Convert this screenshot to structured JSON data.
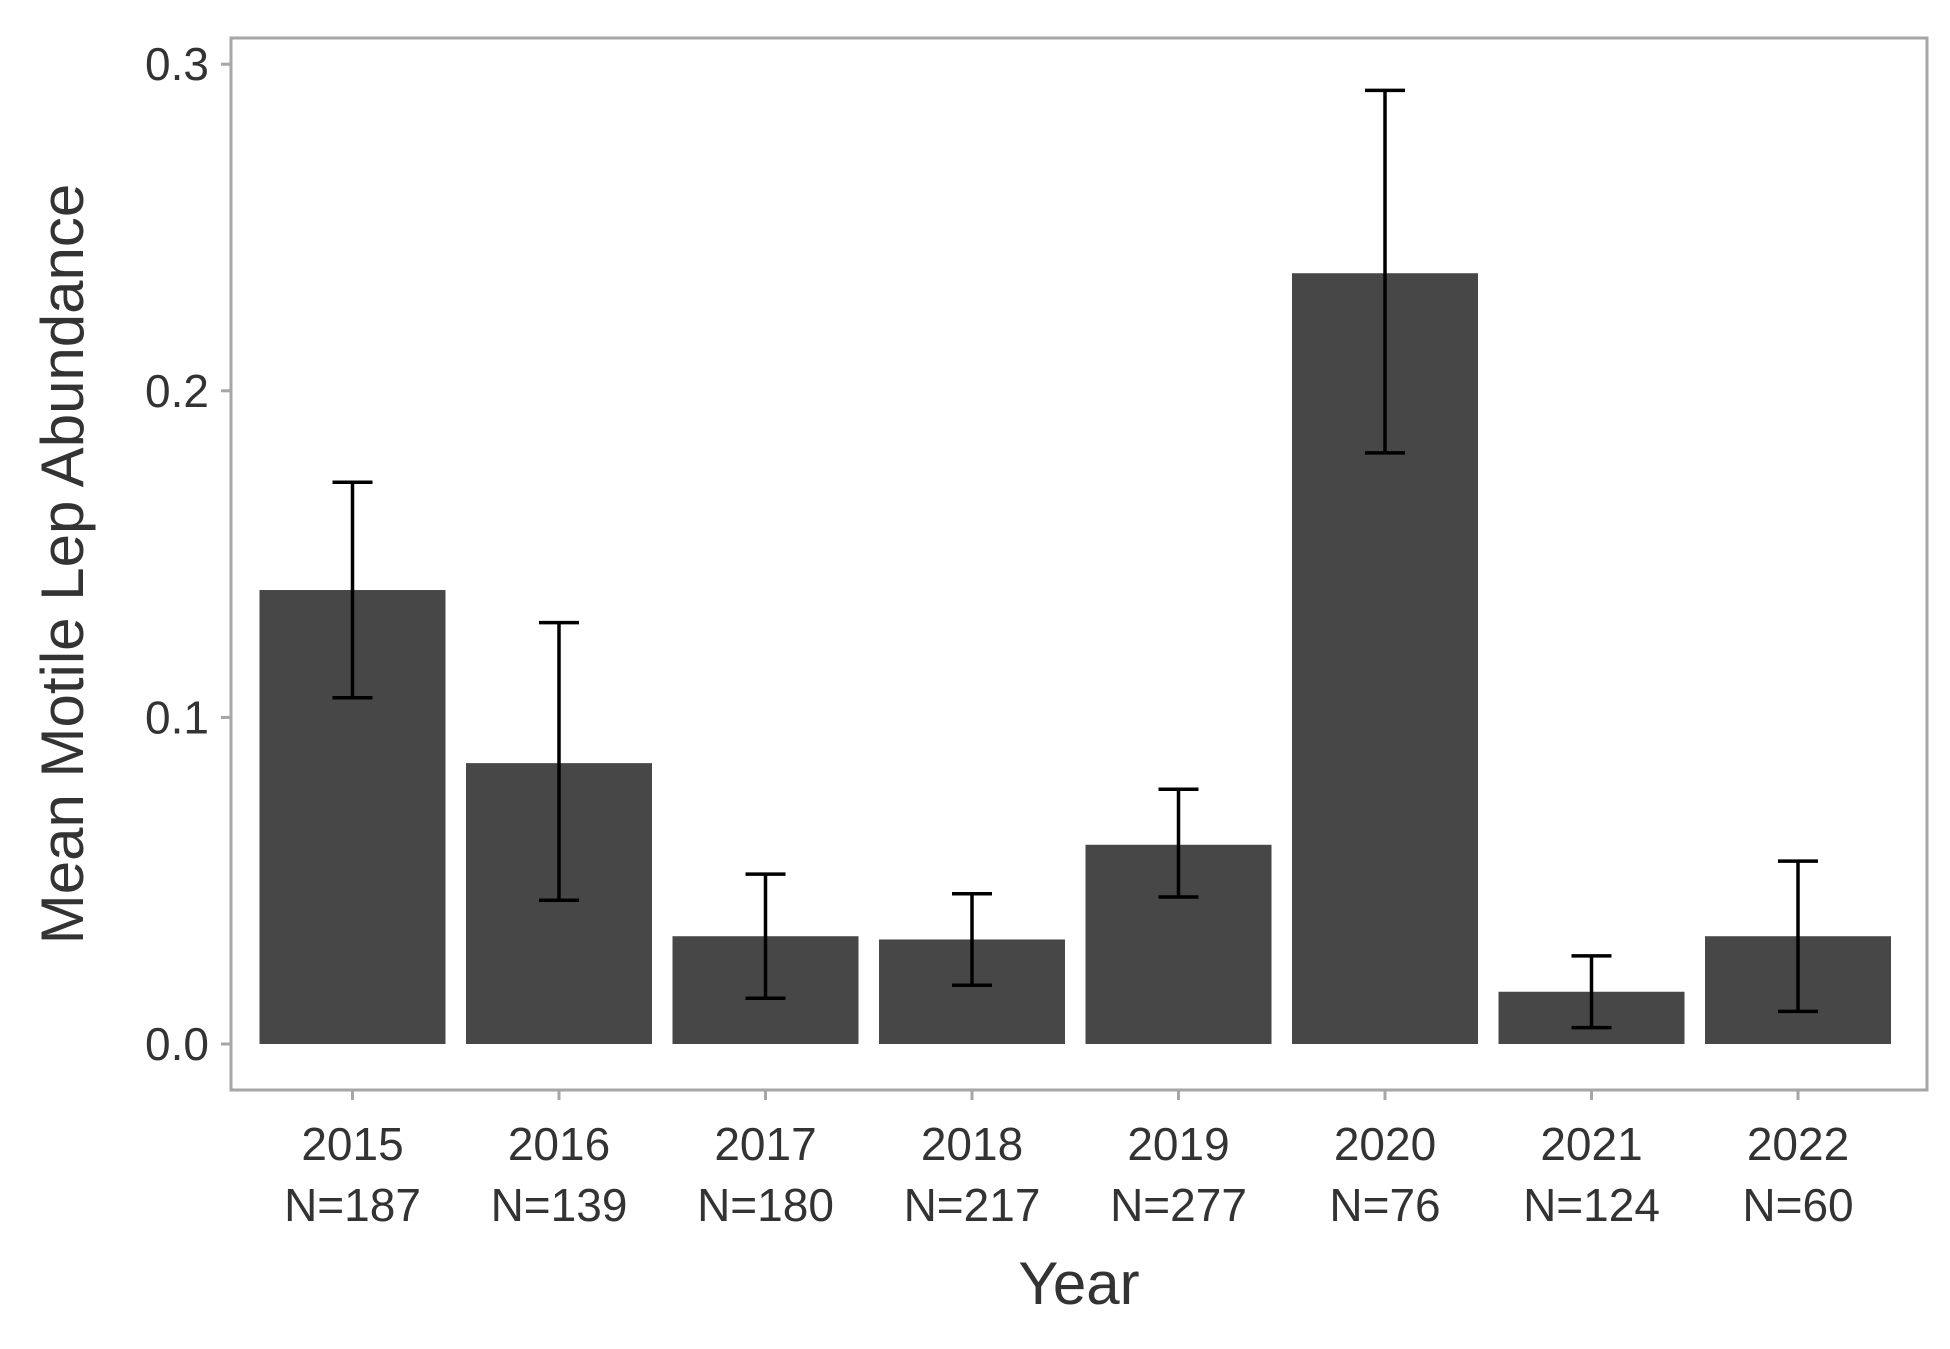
{
  "chart_data": {
    "type": "bar",
    "title": "",
    "xlabel": "Year",
    "ylabel": "Mean Motile Lep Abundance",
    "categories": [
      "2015",
      "2016",
      "2017",
      "2018",
      "2019",
      "2020",
      "2021",
      "2022"
    ],
    "sample_sizes": [
      "N=187",
      "N=139",
      "N=180",
      "N=217",
      "N=277",
      "N=76",
      "N=124",
      "N=60"
    ],
    "values": [
      0.139,
      0.086,
      0.033,
      0.032,
      0.061,
      0.236,
      0.016,
      0.033
    ],
    "error_low": [
      0.106,
      0.044,
      0.014,
      0.018,
      0.045,
      0.181,
      0.005,
      0.01
    ],
    "error_high": [
      0.172,
      0.129,
      0.052,
      0.046,
      0.078,
      0.292,
      0.027,
      0.056
    ],
    "ylim": [
      -0.014,
      0.304
    ],
    "yticks": [
      "0.0",
      "0.1",
      "0.2",
      "0.3"
    ],
    "ytick_values": [
      0.0,
      0.1,
      0.2,
      0.3
    ],
    "grid": false,
    "colors": {
      "bar": "#474747",
      "errorbar": "#000000",
      "panel_border": "#a6a6a6",
      "text": "#333333"
    }
  }
}
